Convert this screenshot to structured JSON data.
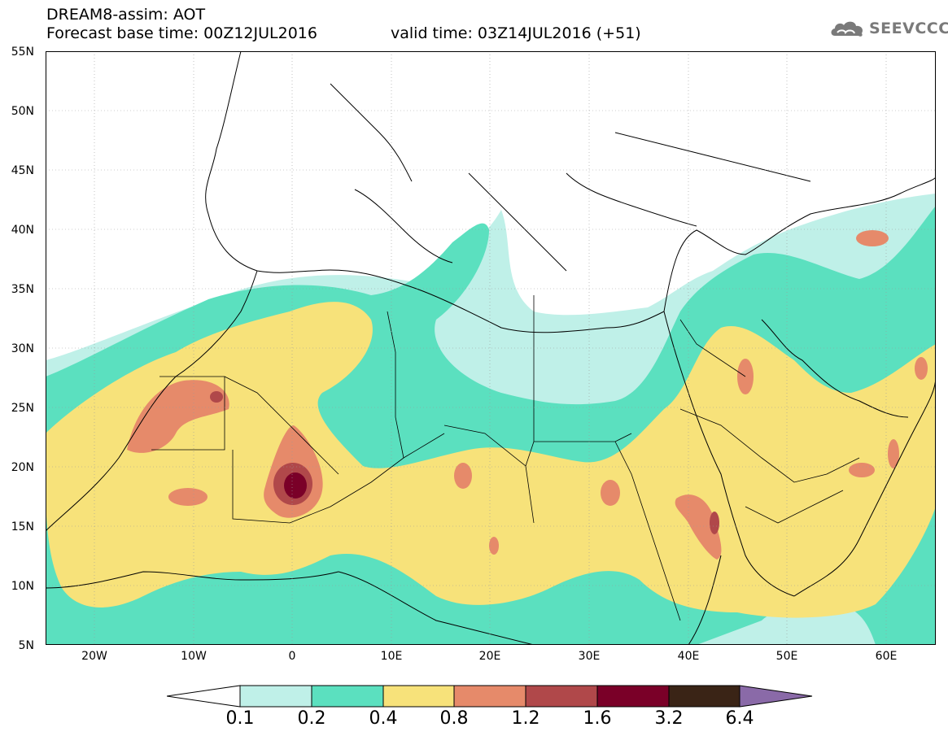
{
  "header": {
    "line1": "DREAM8-assim: AOT",
    "line2": "Forecast base time: 00Z12JUL2016",
    "valid": "valid time: 03Z14JUL2016 (+51)"
  },
  "logo": {
    "text": "SEEVCCC",
    "icon": "cloud-icon"
  },
  "map": {
    "lat_range": [
      5,
      55
    ],
    "lon_range": [
      -25,
      65
    ],
    "lat_ticks": [
      "55N",
      "50N",
      "45N",
      "40N",
      "35N",
      "30N",
      "25N",
      "20N",
      "15N",
      "10N",
      "5N"
    ],
    "lon_ticks": [
      "20W",
      "10W",
      "0",
      "10E",
      "20E",
      "30E",
      "40E",
      "50E",
      "60E"
    ]
  },
  "colorbar": {
    "labels": [
      "0.1",
      "0.2",
      "0.4",
      "0.8",
      "1.2",
      "1.6",
      "3.2",
      "6.4"
    ],
    "colors": [
      "#ffffff",
      "#bff0e8",
      "#5be0bf",
      "#f7e27a",
      "#e68a6a",
      "#b0484a",
      "#7a0028",
      "#3a2416",
      "#8a6aa8"
    ]
  },
  "colors": {
    "c1": "#bff0e8",
    "c2": "#5be0bf",
    "c3": "#f7e27a",
    "c4": "#e68a6a",
    "c5": "#b0484a",
    "c6": "#7a0028"
  }
}
